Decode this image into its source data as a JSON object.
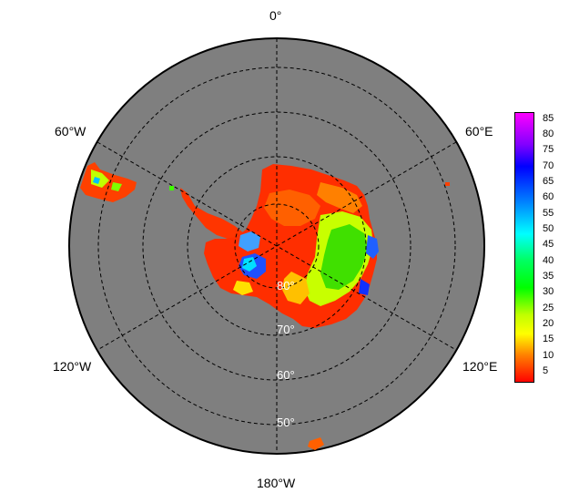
{
  "map": {
    "projection": "south-polar-stereographic",
    "longitude_labels": {
      "top": "0°",
      "upper_left": "60°W",
      "upper_right": "60°E",
      "lower_left": "120°W",
      "lower_right": "120°E",
      "bottom": "180°W"
    },
    "latitude_labels": [
      "80°",
      "70°",
      "60°",
      "50°"
    ],
    "ocean_color": "#7f7f7f",
    "grid": "dashed"
  },
  "colorbar": {
    "ticks": [
      "85",
      "80",
      "75",
      "70",
      "65",
      "60",
      "55",
      "50",
      "45",
      "40",
      "35",
      "30",
      "25",
      "20",
      "15",
      "10",
      "5"
    ],
    "colors": [
      "#ff00ff",
      "#b000ff",
      "#6000ff",
      "#0000ff",
      "#0040ff",
      "#0080ff",
      "#00c0ff",
      "#00ffff",
      "#00ff80",
      "#00ff00",
      "#60ff00",
      "#c0ff00",
      "#ffff00",
      "#ffc000",
      "#ff8000",
      "#ff4000",
      "#ff0000"
    ]
  }
}
